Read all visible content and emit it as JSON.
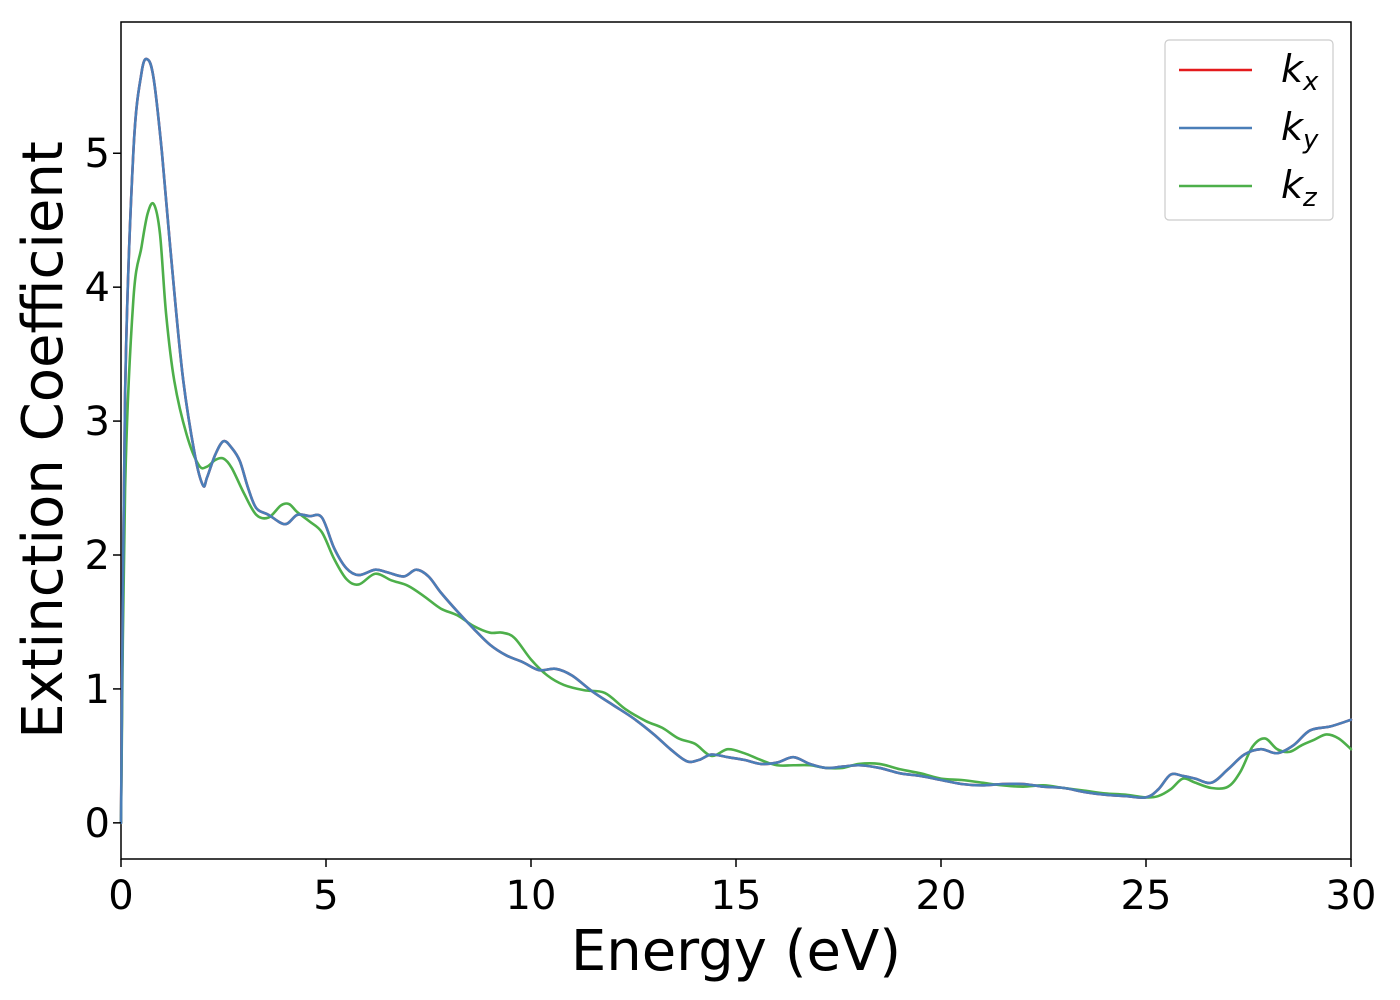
{
  "chart_data": {
    "type": "line",
    "xlabel": "Energy (eV)",
    "ylabel": "Extinction Coefficient",
    "xlim": [
      0,
      30
    ],
    "ylim": [
      -0.27,
      5.98
    ],
    "xticks": [
      0,
      5,
      10,
      15,
      20,
      25,
      30
    ],
    "yticks": [
      0,
      1,
      2,
      3,
      4,
      5
    ],
    "grid": false,
    "legend_position": "top-right",
    "series": [
      {
        "name": "k_x",
        "label_base": "k",
        "label_sub": "x",
        "color": "#e41a1c",
        "x": [
          0,
          0.1,
          0.3,
          0.5,
          0.65,
          0.8,
          1.0,
          1.2,
          1.5,
          1.8,
          2.0,
          2.1,
          2.3,
          2.5,
          2.7,
          2.9,
          3.1,
          3.3,
          3.6,
          4.0,
          4.3,
          4.6,
          4.9,
          5.2,
          5.5,
          5.8,
          6.2,
          6.5,
          6.9,
          7.2,
          7.5,
          7.8,
          8.2,
          8.6,
          9.0,
          9.4,
          9.8,
          10.2,
          10.6,
          11.0,
          11.5,
          12.0,
          12.5,
          13.0,
          13.4,
          13.8,
          14.1,
          14.4,
          14.8,
          15.2,
          15.6,
          16.0,
          16.4,
          16.8,
          17.2,
          17.6,
          18.0,
          18.5,
          19.0,
          19.5,
          20.0,
          20.5,
          21.0,
          21.5,
          22.0,
          22.5,
          23.0,
          23.5,
          24.0,
          24.5,
          25.0,
          25.3,
          25.6,
          25.9,
          26.2,
          26.6,
          27.0,
          27.4,
          27.8,
          28.2,
          28.6,
          29.0,
          29.5,
          30.0
        ],
        "y": [
          0,
          3.2,
          5.0,
          5.6,
          5.7,
          5.55,
          5.0,
          4.3,
          3.35,
          2.75,
          2.52,
          2.58,
          2.75,
          2.85,
          2.8,
          2.7,
          2.5,
          2.35,
          2.3,
          2.23,
          2.3,
          2.29,
          2.28,
          2.05,
          1.9,
          1.85,
          1.89,
          1.87,
          1.84,
          1.89,
          1.84,
          1.72,
          1.58,
          1.45,
          1.33,
          1.25,
          1.2,
          1.14,
          1.15,
          1.1,
          0.98,
          0.88,
          0.78,
          0.66,
          0.55,
          0.46,
          0.47,
          0.51,
          0.49,
          0.47,
          0.44,
          0.45,
          0.49,
          0.44,
          0.41,
          0.42,
          0.43,
          0.41,
          0.37,
          0.35,
          0.32,
          0.29,
          0.28,
          0.29,
          0.29,
          0.27,
          0.26,
          0.23,
          0.21,
          0.2,
          0.19,
          0.25,
          0.36,
          0.35,
          0.33,
          0.3,
          0.4,
          0.51,
          0.55,
          0.52,
          0.58,
          0.69,
          0.72,
          0.77
        ]
      },
      {
        "name": "k_y",
        "label_base": "k",
        "label_sub": "y",
        "color": "#4a7eb8",
        "x": [
          0,
          0.1,
          0.3,
          0.5,
          0.65,
          0.8,
          1.0,
          1.2,
          1.5,
          1.8,
          2.0,
          2.1,
          2.3,
          2.5,
          2.7,
          2.9,
          3.1,
          3.3,
          3.6,
          4.0,
          4.3,
          4.6,
          4.9,
          5.2,
          5.5,
          5.8,
          6.2,
          6.5,
          6.9,
          7.2,
          7.5,
          7.8,
          8.2,
          8.6,
          9.0,
          9.4,
          9.8,
          10.2,
          10.6,
          11.0,
          11.5,
          12.0,
          12.5,
          13.0,
          13.4,
          13.8,
          14.1,
          14.4,
          14.8,
          15.2,
          15.6,
          16.0,
          16.4,
          16.8,
          17.2,
          17.6,
          18.0,
          18.5,
          19.0,
          19.5,
          20.0,
          20.5,
          21.0,
          21.5,
          22.0,
          22.5,
          23.0,
          23.5,
          24.0,
          24.5,
          25.0,
          25.3,
          25.6,
          25.9,
          26.2,
          26.6,
          27.0,
          27.4,
          27.8,
          28.2,
          28.6,
          29.0,
          29.5,
          30.0
        ],
        "y": [
          0,
          3.2,
          5.0,
          5.6,
          5.7,
          5.55,
          5.0,
          4.3,
          3.35,
          2.75,
          2.52,
          2.58,
          2.75,
          2.85,
          2.8,
          2.7,
          2.5,
          2.35,
          2.3,
          2.23,
          2.3,
          2.29,
          2.28,
          2.05,
          1.9,
          1.85,
          1.89,
          1.87,
          1.84,
          1.89,
          1.84,
          1.72,
          1.58,
          1.45,
          1.33,
          1.25,
          1.2,
          1.14,
          1.15,
          1.1,
          0.98,
          0.88,
          0.78,
          0.66,
          0.55,
          0.46,
          0.47,
          0.51,
          0.49,
          0.47,
          0.44,
          0.45,
          0.49,
          0.44,
          0.41,
          0.42,
          0.43,
          0.41,
          0.37,
          0.35,
          0.32,
          0.29,
          0.28,
          0.29,
          0.29,
          0.27,
          0.26,
          0.23,
          0.21,
          0.2,
          0.19,
          0.25,
          0.36,
          0.35,
          0.33,
          0.3,
          0.4,
          0.51,
          0.55,
          0.52,
          0.58,
          0.69,
          0.72,
          0.77
        ]
      },
      {
        "name": "k_z",
        "label_base": "k",
        "label_sub": "z",
        "color": "#4daf4a",
        "x": [
          0,
          0.1,
          0.3,
          0.5,
          0.65,
          0.8,
          0.95,
          1.1,
          1.3,
          1.6,
          1.9,
          2.1,
          2.3,
          2.5,
          2.7,
          3.0,
          3.3,
          3.6,
          3.9,
          4.1,
          4.3,
          4.6,
          4.9,
          5.2,
          5.5,
          5.8,
          6.2,
          6.6,
          7.0,
          7.4,
          7.8,
          8.2,
          8.6,
          9.0,
          9.3,
          9.6,
          10.0,
          10.4,
          10.8,
          11.3,
          11.8,
          12.3,
          12.8,
          13.2,
          13.6,
          14.0,
          14.4,
          14.8,
          15.2,
          15.6,
          16.0,
          16.4,
          16.8,
          17.2,
          17.6,
          18.0,
          18.5,
          19.0,
          19.5,
          20.0,
          20.5,
          21.0,
          21.5,
          22.0,
          22.5,
          23.0,
          23.5,
          24.0,
          24.5,
          25.0,
          25.3,
          25.6,
          25.9,
          26.2,
          26.6,
          27.0,
          27.3,
          27.6,
          27.9,
          28.2,
          28.5,
          28.8,
          29.1,
          29.4,
          29.7,
          30.0
        ],
        "y": [
          0,
          2.5,
          3.9,
          4.3,
          4.55,
          4.62,
          4.4,
          3.8,
          3.3,
          2.9,
          2.67,
          2.66,
          2.71,
          2.72,
          2.65,
          2.46,
          2.3,
          2.28,
          2.37,
          2.38,
          2.32,
          2.25,
          2.17,
          1.97,
          1.82,
          1.78,
          1.86,
          1.81,
          1.77,
          1.69,
          1.6,
          1.55,
          1.47,
          1.42,
          1.42,
          1.38,
          1.22,
          1.1,
          1.03,
          0.99,
          0.97,
          0.85,
          0.76,
          0.71,
          0.63,
          0.59,
          0.5,
          0.55,
          0.52,
          0.47,
          0.43,
          0.43,
          0.43,
          0.41,
          0.41,
          0.44,
          0.44,
          0.4,
          0.37,
          0.33,
          0.32,
          0.3,
          0.28,
          0.27,
          0.28,
          0.26,
          0.24,
          0.22,
          0.21,
          0.19,
          0.2,
          0.25,
          0.33,
          0.3,
          0.26,
          0.27,
          0.38,
          0.57,
          0.63,
          0.55,
          0.53,
          0.58,
          0.62,
          0.66,
          0.63,
          0.55
        ]
      }
    ]
  }
}
